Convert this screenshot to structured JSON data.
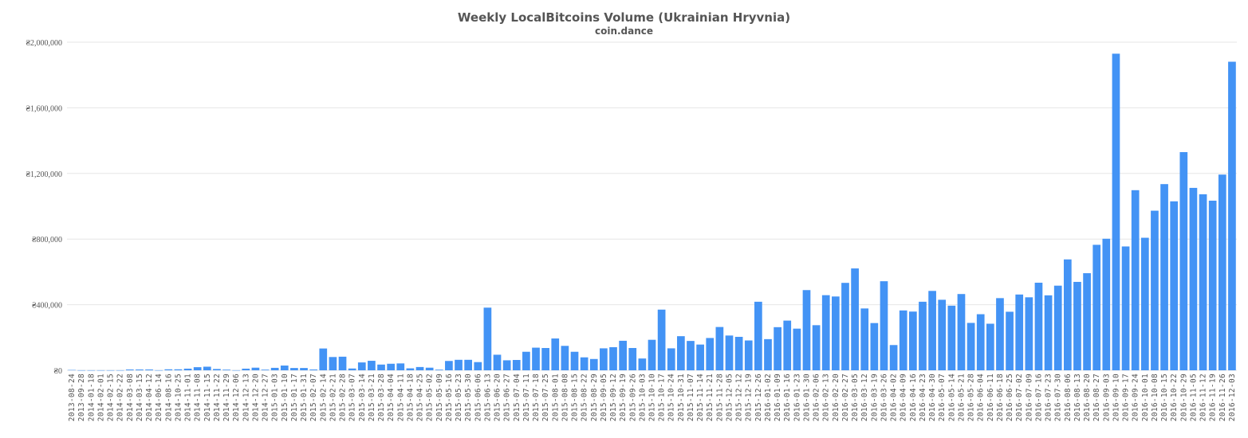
{
  "chart_data": {
    "type": "bar",
    "title": "Weekly LocalBitcoins Volume (Ukrainian Hryvnia)",
    "subtitle": "coin.dance",
    "xlabel": "",
    "ylabel": "",
    "ylim": [
      0,
      2000000
    ],
    "yticks": [
      0,
      400000,
      800000,
      1200000,
      1600000,
      2000000
    ],
    "ytick_labels": [
      "₴0",
      "₴400,000",
      "₴800,000",
      "₴1,200,000",
      "₴1,600,000",
      "₴2,000,000"
    ],
    "grid": true,
    "legend": false,
    "bar_color": "#4393f5",
    "categories": [
      "2013-08-24",
      "2013-09-28",
      "2014-01-18",
      "2014-02-01",
      "2014-02-15",
      "2014-02-22",
      "2014-03-08",
      "2014-03-15",
      "2014-04-12",
      "2014-06-14",
      "2014-08-16",
      "2014-10-25",
      "2014-11-01",
      "2014-11-08",
      "2014-11-15",
      "2014-11-22",
      "2014-11-29",
      "2014-12-06",
      "2014-12-13",
      "2014-12-20",
      "2014-12-27",
      "2015-01-03",
      "2015-01-10",
      "2015-01-17",
      "2015-01-31",
      "2015-02-07",
      "2015-02-14",
      "2015-02-21",
      "2015-02-28",
      "2015-03-07",
      "2015-03-14",
      "2015-03-21",
      "2015-03-28",
      "2015-04-04",
      "2015-04-11",
      "2015-04-18",
      "2015-04-25",
      "2015-05-02",
      "2015-05-09",
      "2015-05-16",
      "2015-05-23",
      "2015-05-30",
      "2015-06-06",
      "2015-06-13",
      "2015-06-20",
      "2015-06-27",
      "2015-07-04",
      "2015-07-11",
      "2015-07-18",
      "2015-07-25",
      "2015-08-01",
      "2015-08-08",
      "2015-08-15",
      "2015-08-22",
      "2015-08-29",
      "2015-09-05",
      "2015-09-12",
      "2015-09-19",
      "2015-09-26",
      "2015-10-03",
      "2015-10-10",
      "2015-10-17",
      "2015-10-24",
      "2015-10-31",
      "2015-11-07",
      "2015-11-14",
      "2015-11-21",
      "2015-11-28",
      "2015-12-05",
      "2015-12-12",
      "2015-12-19",
      "2015-12-26",
      "2016-01-02",
      "2016-01-09",
      "2016-01-16",
      "2016-01-23",
      "2016-01-30",
      "2016-02-06",
      "2016-02-13",
      "2016-02-20",
      "2016-02-27",
      "2016-03-05",
      "2016-03-12",
      "2016-03-19",
      "2016-03-26",
      "2016-04-02",
      "2016-04-09",
      "2016-04-16",
      "2016-04-23",
      "2016-04-30",
      "2016-05-07",
      "2016-05-14",
      "2016-05-21",
      "2016-05-28",
      "2016-06-04",
      "2016-06-11",
      "2016-06-18",
      "2016-06-25",
      "2016-07-02",
      "2016-07-09",
      "2016-07-16",
      "2016-07-23",
      "2016-07-30",
      "2016-08-06",
      "2016-08-13",
      "2016-08-20",
      "2016-08-27",
      "2016-09-03",
      "2016-09-10",
      "2016-09-17",
      "2016-09-24",
      "2016-10-01",
      "2016-10-08",
      "2016-10-15",
      "2016-10-22",
      "2016-10-29",
      "2016-11-05",
      "2016-11-12",
      "2016-11-19",
      "2016-11-26",
      "2016-12-03"
    ],
    "values": [
      2000,
      500,
      500,
      500,
      500,
      500,
      5000,
      5000,
      5000,
      500,
      6000,
      6000,
      10000,
      19000,
      22000,
      8000,
      4000,
      500,
      10000,
      16000,
      4000,
      15000,
      29000,
      14000,
      14000,
      5000,
      133000,
      81000,
      83000,
      11000,
      48000,
      58000,
      35000,
      40000,
      42000,
      12000,
      20000,
      16000,
      4000,
      57000,
      64000,
      64000,
      50000,
      382000,
      95000,
      61000,
      63000,
      113000,
      138000,
      136000,
      194000,
      149000,
      113000,
      79000,
      69000,
      134000,
      141000,
      180000,
      136000,
      72000,
      186000,
      370000,
      134000,
      208000,
      179000,
      157000,
      197000,
      264000,
      212000,
      204000,
      182000,
      418000,
      190000,
      263000,
      303000,
      254000,
      489000,
      275000,
      458000,
      450000,
      533000,
      621000,
      377000,
      288000,
      543000,
      154000,
      365000,
      358000,
      418000,
      484000,
      430000,
      394000,
      465000,
      289000,
      342000,
      284000,
      440000,
      357000,
      462000,
      445000,
      534000,
      457000,
      516000,
      676000,
      539000,
      592000,
      765000,
      802000,
      1930000,
      755000,
      1098000,
      808000,
      973000,
      1135000,
      1030000,
      1330000,
      1112000,
      1073000,
      1034000,
      1193000,
      1881000
    ]
  }
}
